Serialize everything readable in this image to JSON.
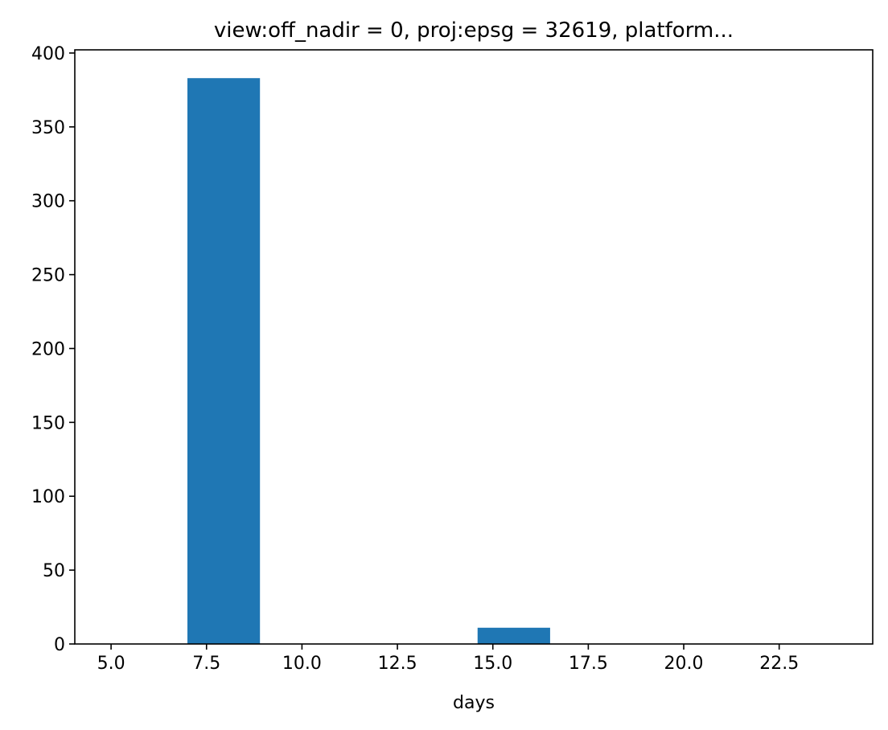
{
  "chart_data": {
    "type": "bar",
    "title": "view:off_nadir = 0, proj:epsg = 32619, platform...",
    "xlabel": "days",
    "ylabel": "",
    "xlim": [
      4.05,
      24.95
    ],
    "ylim": [
      0,
      402.15
    ],
    "grid": false,
    "bar_color": "#1f77b4",
    "bins": [
      {
        "x0": 7.0,
        "x1": 8.9,
        "value": 383
      },
      {
        "x0": 8.9,
        "x1": 10.8,
        "value": 0
      },
      {
        "x0": 10.8,
        "x1": 12.7,
        "value": 0
      },
      {
        "x0": 12.7,
        "x1": 14.6,
        "value": 0
      },
      {
        "x0": 14.6,
        "x1": 16.5,
        "value": 11
      },
      {
        "x0": 16.5,
        "x1": 18.4,
        "value": 0
      },
      {
        "x0": 18.4,
        "x1": 20.3,
        "value": 0
      },
      {
        "x0": 20.3,
        "x1": 22.2,
        "value": 0
      },
      {
        "x0": 22.2,
        "x1": 24.1,
        "value": 0
      },
      {
        "x0": 24.1,
        "x1": 26.0,
        "value": 0
      }
    ],
    "xticks": [
      {
        "value": 5.0,
        "label": "5.0"
      },
      {
        "value": 7.5,
        "label": "7.5"
      },
      {
        "value": 10.0,
        "label": "10.0"
      },
      {
        "value": 12.5,
        "label": "12.5"
      },
      {
        "value": 15.0,
        "label": "15.0"
      },
      {
        "value": 17.5,
        "label": "17.5"
      },
      {
        "value": 20.0,
        "label": "20.0"
      },
      {
        "value": 22.5,
        "label": "22.5"
      }
    ],
    "yticks": [
      {
        "value": 0,
        "label": "0"
      },
      {
        "value": 50,
        "label": "50"
      },
      {
        "value": 100,
        "label": "100"
      },
      {
        "value": 150,
        "label": "150"
      },
      {
        "value": 200,
        "label": "200"
      },
      {
        "value": 250,
        "label": "250"
      },
      {
        "value": 300,
        "label": "300"
      },
      {
        "value": 350,
        "label": "350"
      },
      {
        "value": 400,
        "label": "400"
      }
    ]
  }
}
